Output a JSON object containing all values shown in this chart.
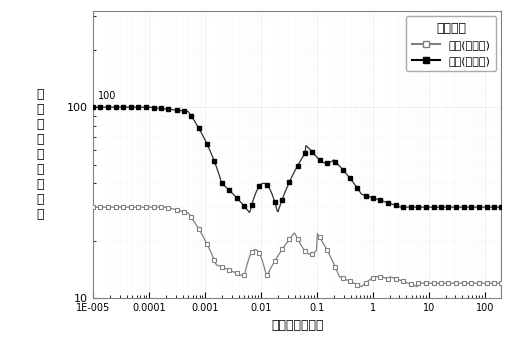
{
  "xlabel": "延迟时间（秒）",
  "ylabel": "视电阻率（欧姆米）",
  "ylabel_chars": [
    "视",
    "电",
    "阻",
    "率",
    "（",
    "欧",
    "姆",
    "米",
    "）"
  ],
  "legend_title": "视电阻率",
  "legend_label1": "早期(上阶跃)",
  "legend_label2": "晗期(上阶跃)",
  "background_color": "#ffffff",
  "color_late": "#000000",
  "color_early": "#888888",
  "ylim": [
    10,
    320
  ],
  "xlim": [
    1e-05,
    200
  ]
}
